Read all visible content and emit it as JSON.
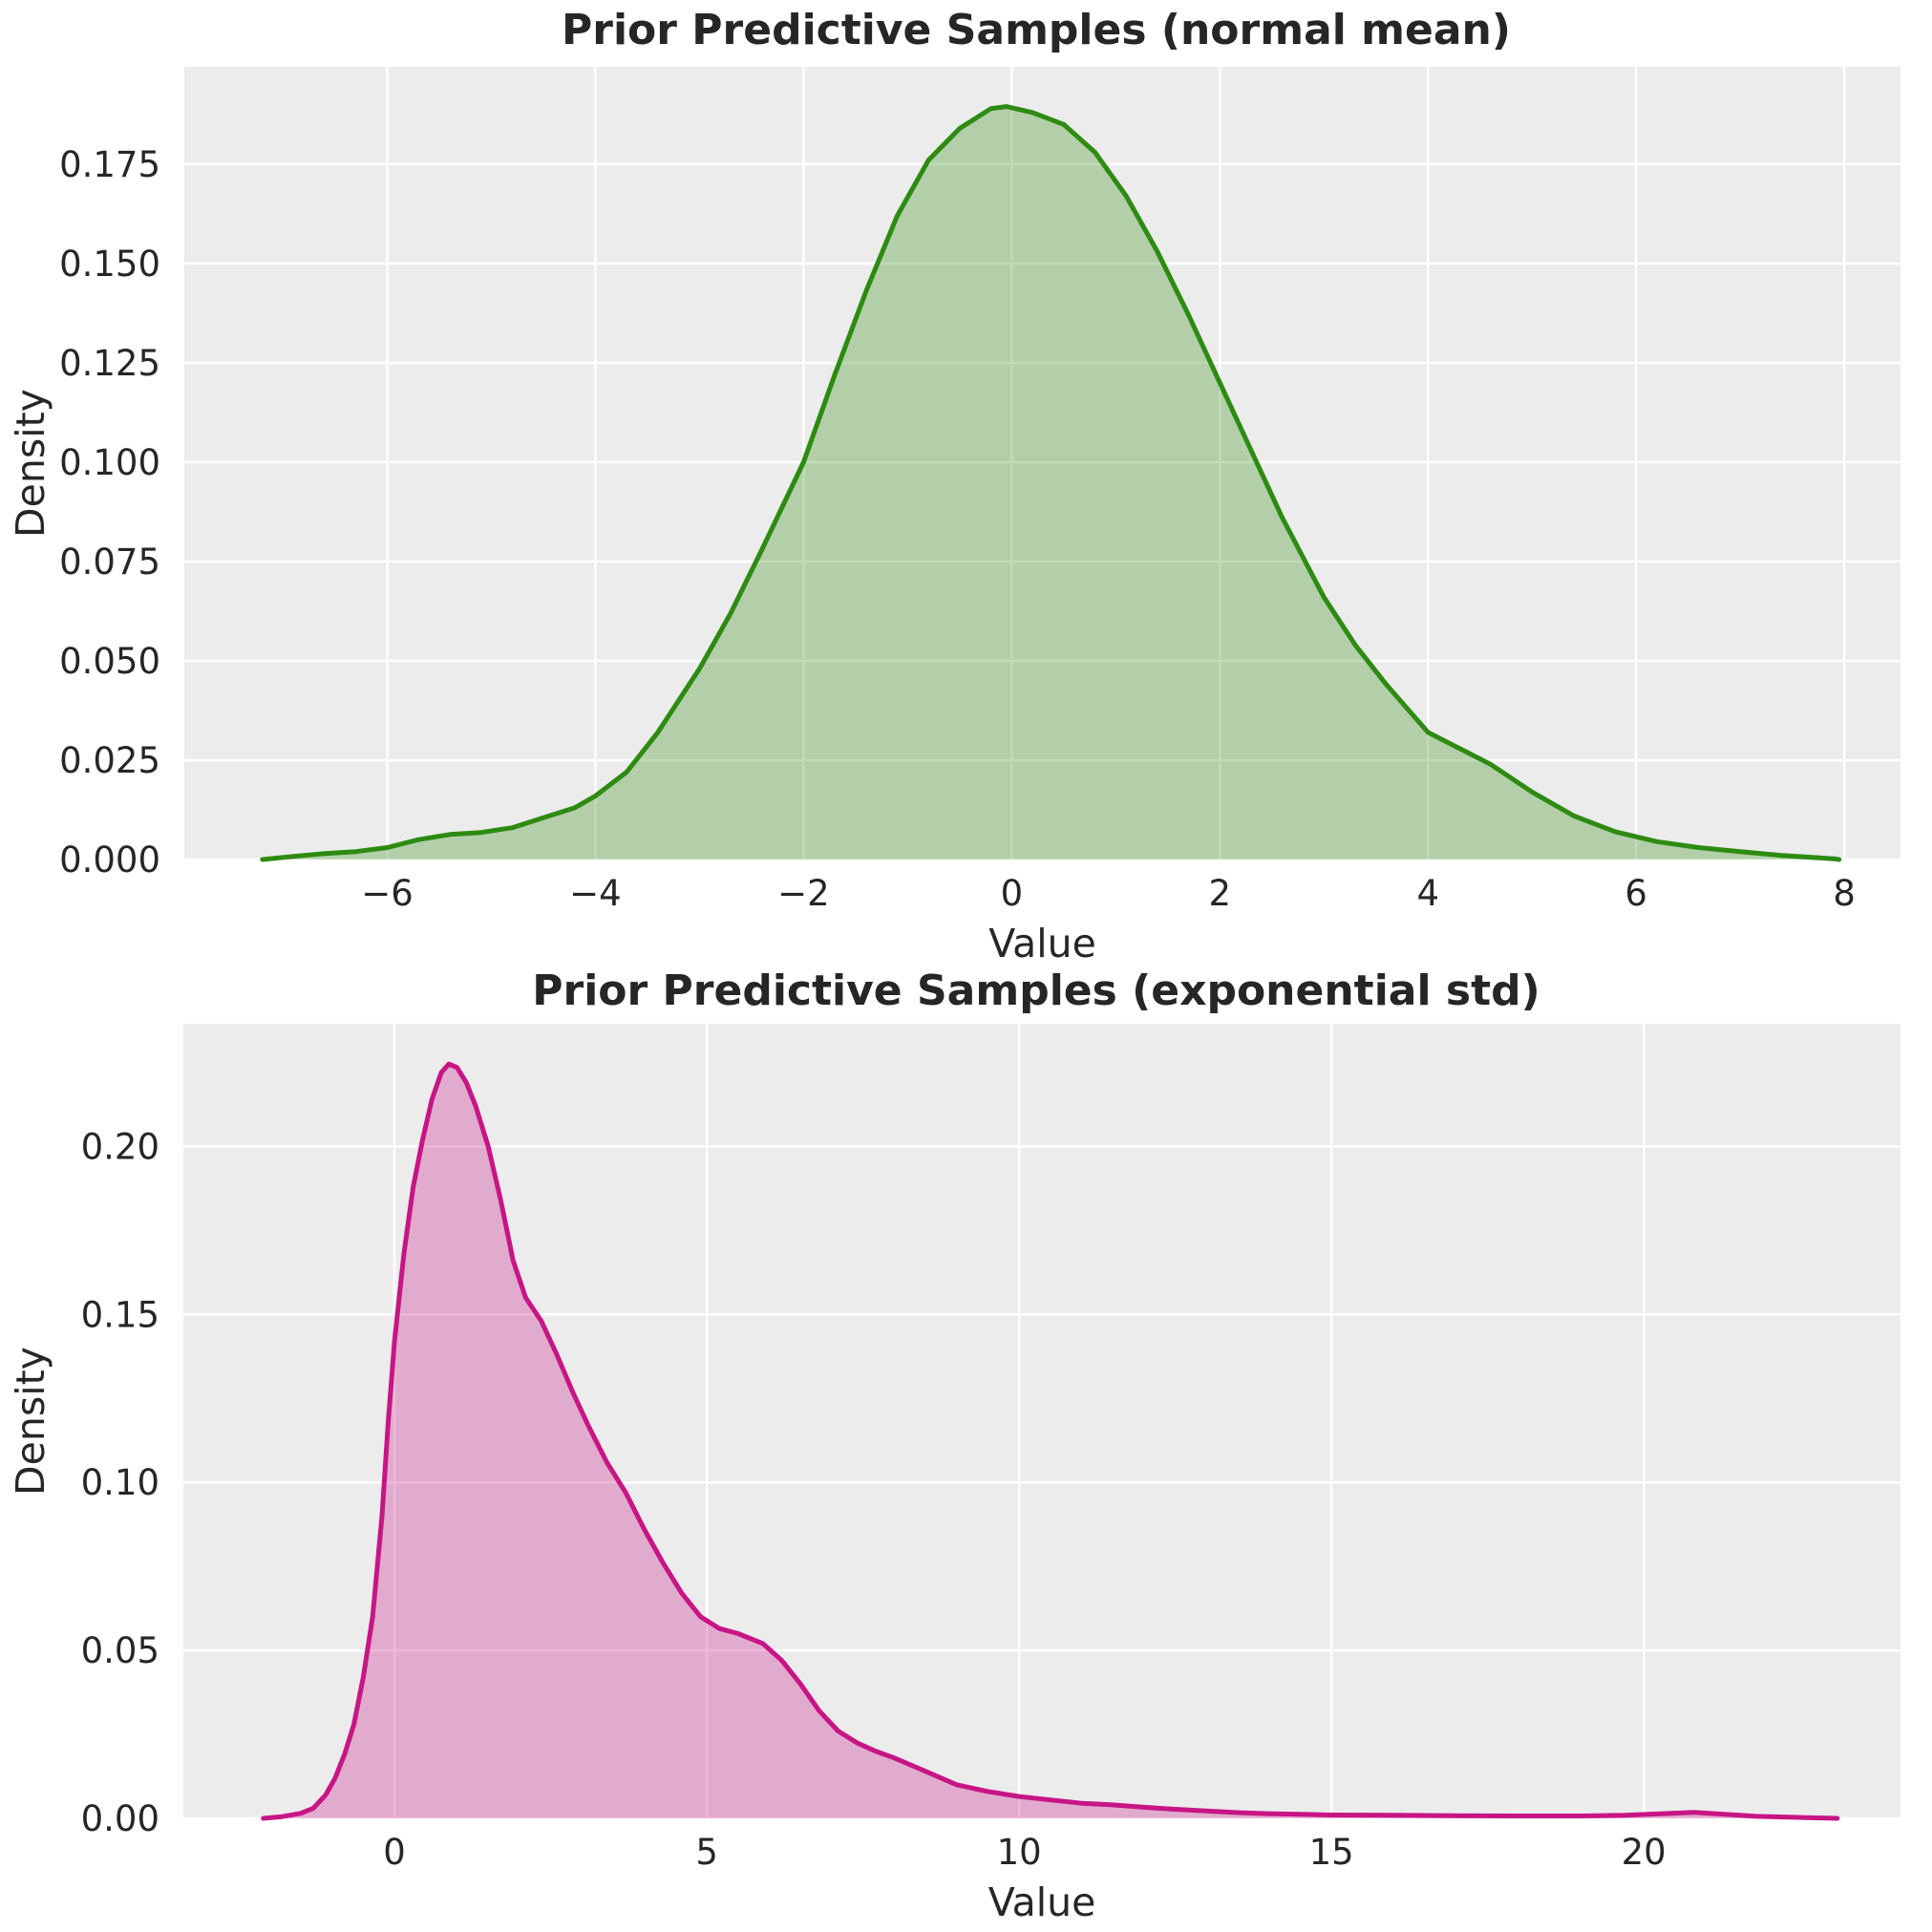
{
  "figure": {
    "background": "#ffffff",
    "plot_background": "#ececec",
    "grid_color": "#ffffff",
    "text_color": "#262626"
  },
  "chart_data": [
    {
      "type": "area",
      "title": "Prior Predictive Samples (normal mean)",
      "xlabel": "Value",
      "ylabel": "Density",
      "legend": "none",
      "grid": true,
      "line_color": "#2e8b12",
      "fill_color": "#2e8b12",
      "fill_alpha": 0.3,
      "xlim": [
        -7.95,
        8.54
      ],
      "ylim": [
        0,
        0.1995
      ],
      "xtick_values": [
        -6,
        -4,
        -2,
        0,
        2,
        4,
        6,
        8
      ],
      "xtick_labels": [
        "−6",
        "−4",
        "−2",
        "0",
        "2",
        "4",
        "6",
        "8"
      ],
      "ytick_values": [
        0.0,
        0.025,
        0.05,
        0.075,
        0.1,
        0.125,
        0.15,
        0.175
      ],
      "ytick_labels": [
        "0.000",
        "0.025",
        "0.050",
        "0.075",
        "0.100",
        "0.125",
        "0.150",
        "0.175"
      ],
      "peak": {
        "x": -0.08,
        "density": 0.1895
      },
      "points": [
        [
          -7.2,
          0
        ],
        [
          -6.9,
          0.0008
        ],
        [
          -6.6,
          0.0015
        ],
        [
          -6.3,
          0.002
        ],
        [
          -6.0,
          0.003
        ],
        [
          -5.7,
          0.005
        ],
        [
          -5.4,
          0.0063
        ],
        [
          -5.1,
          0.0068
        ],
        [
          -4.8,
          0.008
        ],
        [
          -4.5,
          0.0105
        ],
        [
          -4.2,
          0.013
        ],
        [
          -4.0,
          0.016
        ],
        [
          -3.7,
          0.022
        ],
        [
          -3.4,
          0.032
        ],
        [
          -3.0,
          0.048
        ],
        [
          -2.7,
          0.062
        ],
        [
          -2.4,
          0.078
        ],
        [
          -2.0,
          0.1
        ],
        [
          -1.7,
          0.122
        ],
        [
          -1.4,
          0.143
        ],
        [
          -1.1,
          0.162
        ],
        [
          -0.8,
          0.176
        ],
        [
          -0.5,
          0.184
        ],
        [
          -0.2,
          0.189
        ],
        [
          -0.05,
          0.1895
        ],
        [
          0.2,
          0.188
        ],
        [
          0.5,
          0.185
        ],
        [
          0.8,
          0.178
        ],
        [
          1.1,
          0.167
        ],
        [
          1.4,
          0.153
        ],
        [
          1.7,
          0.137
        ],
        [
          2.0,
          0.12
        ],
        [
          2.3,
          0.103
        ],
        [
          2.6,
          0.086
        ],
        [
          3.0,
          0.066
        ],
        [
          3.3,
          0.054
        ],
        [
          3.6,
          0.044
        ],
        [
          4.0,
          0.032
        ],
        [
          4.3,
          0.028
        ],
        [
          4.6,
          0.024
        ],
        [
          5.0,
          0.017
        ],
        [
          5.4,
          0.011
        ],
        [
          5.8,
          0.007
        ],
        [
          6.2,
          0.0045
        ],
        [
          6.6,
          0.003
        ],
        [
          7.0,
          0.002
        ],
        [
          7.4,
          0.001
        ],
        [
          7.9,
          0.0002
        ],
        [
          7.95,
          0
        ]
      ]
    },
    {
      "type": "area",
      "title": "Prior Predictive Samples (exponential std)",
      "xlabel": "Value",
      "ylabel": "Density",
      "legend": "none",
      "grid": true,
      "line_color": "#c71585",
      "fill_color": "#c71585",
      "fill_alpha": 0.3,
      "xlim": [
        -3.38,
        24.11
      ],
      "ylim": [
        0,
        0.2365
      ],
      "xtick_values": [
        0,
        5,
        10,
        15,
        20
      ],
      "xtick_labels": [
        "0",
        "5",
        "10",
        "15",
        "20"
      ],
      "ytick_values": [
        0.0,
        0.05,
        0.1,
        0.15,
        0.2
      ],
      "ytick_labels": [
        "0.00",
        "0.05",
        "0.10",
        "0.15",
        "0.20"
      ],
      "peak": {
        "x": 0.87,
        "density": 0.2245
      },
      "points": [
        [
          -2.1,
          0
        ],
        [
          -1.8,
          0.0005
        ],
        [
          -1.5,
          0.0015
        ],
        [
          -1.3,
          0.003
        ],
        [
          -1.1,
          0.007
        ],
        [
          -0.95,
          0.012
        ],
        [
          -0.8,
          0.019
        ],
        [
          -0.65,
          0.028
        ],
        [
          -0.5,
          0.042
        ],
        [
          -0.35,
          0.06
        ],
        [
          -0.2,
          0.09
        ],
        [
          -0.1,
          0.118
        ],
        [
          0.0,
          0.142
        ],
        [
          0.15,
          0.168
        ],
        [
          0.3,
          0.188
        ],
        [
          0.45,
          0.202
        ],
        [
          0.6,
          0.214
        ],
        [
          0.75,
          0.222
        ],
        [
          0.87,
          0.2245
        ],
        [
          1.0,
          0.2235
        ],
        [
          1.15,
          0.219
        ],
        [
          1.3,
          0.212
        ],
        [
          1.5,
          0.2
        ],
        [
          1.7,
          0.184
        ],
        [
          1.9,
          0.166
        ],
        [
          2.1,
          0.155
        ],
        [
          2.35,
          0.148
        ],
        [
          2.6,
          0.138
        ],
        [
          2.85,
          0.127
        ],
        [
          3.1,
          0.117
        ],
        [
          3.4,
          0.106
        ],
        [
          3.7,
          0.097
        ],
        [
          4.0,
          0.086
        ],
        [
          4.3,
          0.076
        ],
        [
          4.6,
          0.067
        ],
        [
          4.9,
          0.06
        ],
        [
          5.2,
          0.0565
        ],
        [
          5.5,
          0.055
        ],
        [
          5.9,
          0.052
        ],
        [
          6.2,
          0.047
        ],
        [
          6.5,
          0.04
        ],
        [
          6.8,
          0.032
        ],
        [
          7.1,
          0.026
        ],
        [
          7.4,
          0.0225
        ],
        [
          7.7,
          0.02
        ],
        [
          8.0,
          0.018
        ],
        [
          8.5,
          0.014
        ],
        [
          9.0,
          0.01
        ],
        [
          9.5,
          0.008
        ],
        [
          10.0,
          0.0065
        ],
        [
          10.5,
          0.0055
        ],
        [
          11.0,
          0.0045
        ],
        [
          11.5,
          0.004
        ],
        [
          12.0,
          0.0033
        ],
        [
          12.5,
          0.0027
        ],
        [
          13.0,
          0.0022
        ],
        [
          13.5,
          0.0017
        ],
        [
          14.0,
          0.0014
        ],
        [
          14.5,
          0.0012
        ],
        [
          15.0,
          0.001
        ],
        [
          16.0,
          0.0009
        ],
        [
          17.0,
          0.0008
        ],
        [
          18.0,
          0.0007
        ],
        [
          19.0,
          0.0007
        ],
        [
          19.7,
          0.0009
        ],
        [
          20.3,
          0.0014
        ],
        [
          20.8,
          0.0018
        ],
        [
          21.3,
          0.0012
        ],
        [
          21.8,
          0.0006
        ],
        [
          22.4,
          0.0003
        ],
        [
          23.1,
          0
        ]
      ]
    }
  ]
}
